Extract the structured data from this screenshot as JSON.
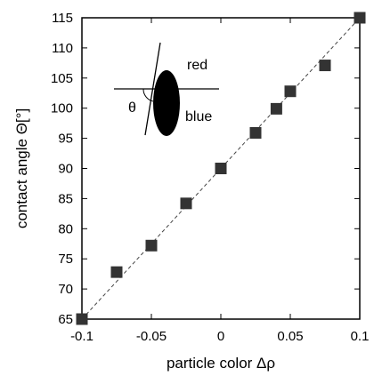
{
  "chart_data": {
    "type": "scatter",
    "title": "",
    "xlabel": "particle color Δρ",
    "ylabel": "contact angle Θ[°]",
    "xlim": [
      -0.1,
      0.1
    ],
    "ylim": [
      65,
      115
    ],
    "xticks": [
      -0.1,
      -0.05,
      0,
      0.05,
      0.1
    ],
    "xtick_labels": [
      "-0.1",
      "-0.05",
      "0",
      "0.05",
      "0.1"
    ],
    "yticks": [
      65,
      70,
      75,
      80,
      85,
      90,
      95,
      100,
      105,
      110,
      115
    ],
    "yticks_labels": [
      "65",
      "70",
      "75",
      "80",
      "85",
      "90",
      "95",
      "100",
      "105",
      "110",
      "115"
    ],
    "grid": false,
    "series": [
      {
        "marker": "square",
        "color": "#333333",
        "x": [
          -0.1,
          -0.075,
          -0.05,
          -0.025,
          0,
          0.025,
          0.04,
          0.05,
          0.075,
          0.1
        ],
        "y": [
          65,
          72.8,
          77.2,
          84.2,
          90,
          95.9,
          99.9,
          102.8,
          107.1,
          115
        ]
      }
    ],
    "fit_line": {
      "style": "dashed",
      "x": [
        -0.1,
        0.1
      ],
      "y": [
        65,
        115
      ]
    },
    "inset": {
      "top_label": "red",
      "bottom_label": "blue",
      "angle_label": "θ"
    }
  }
}
